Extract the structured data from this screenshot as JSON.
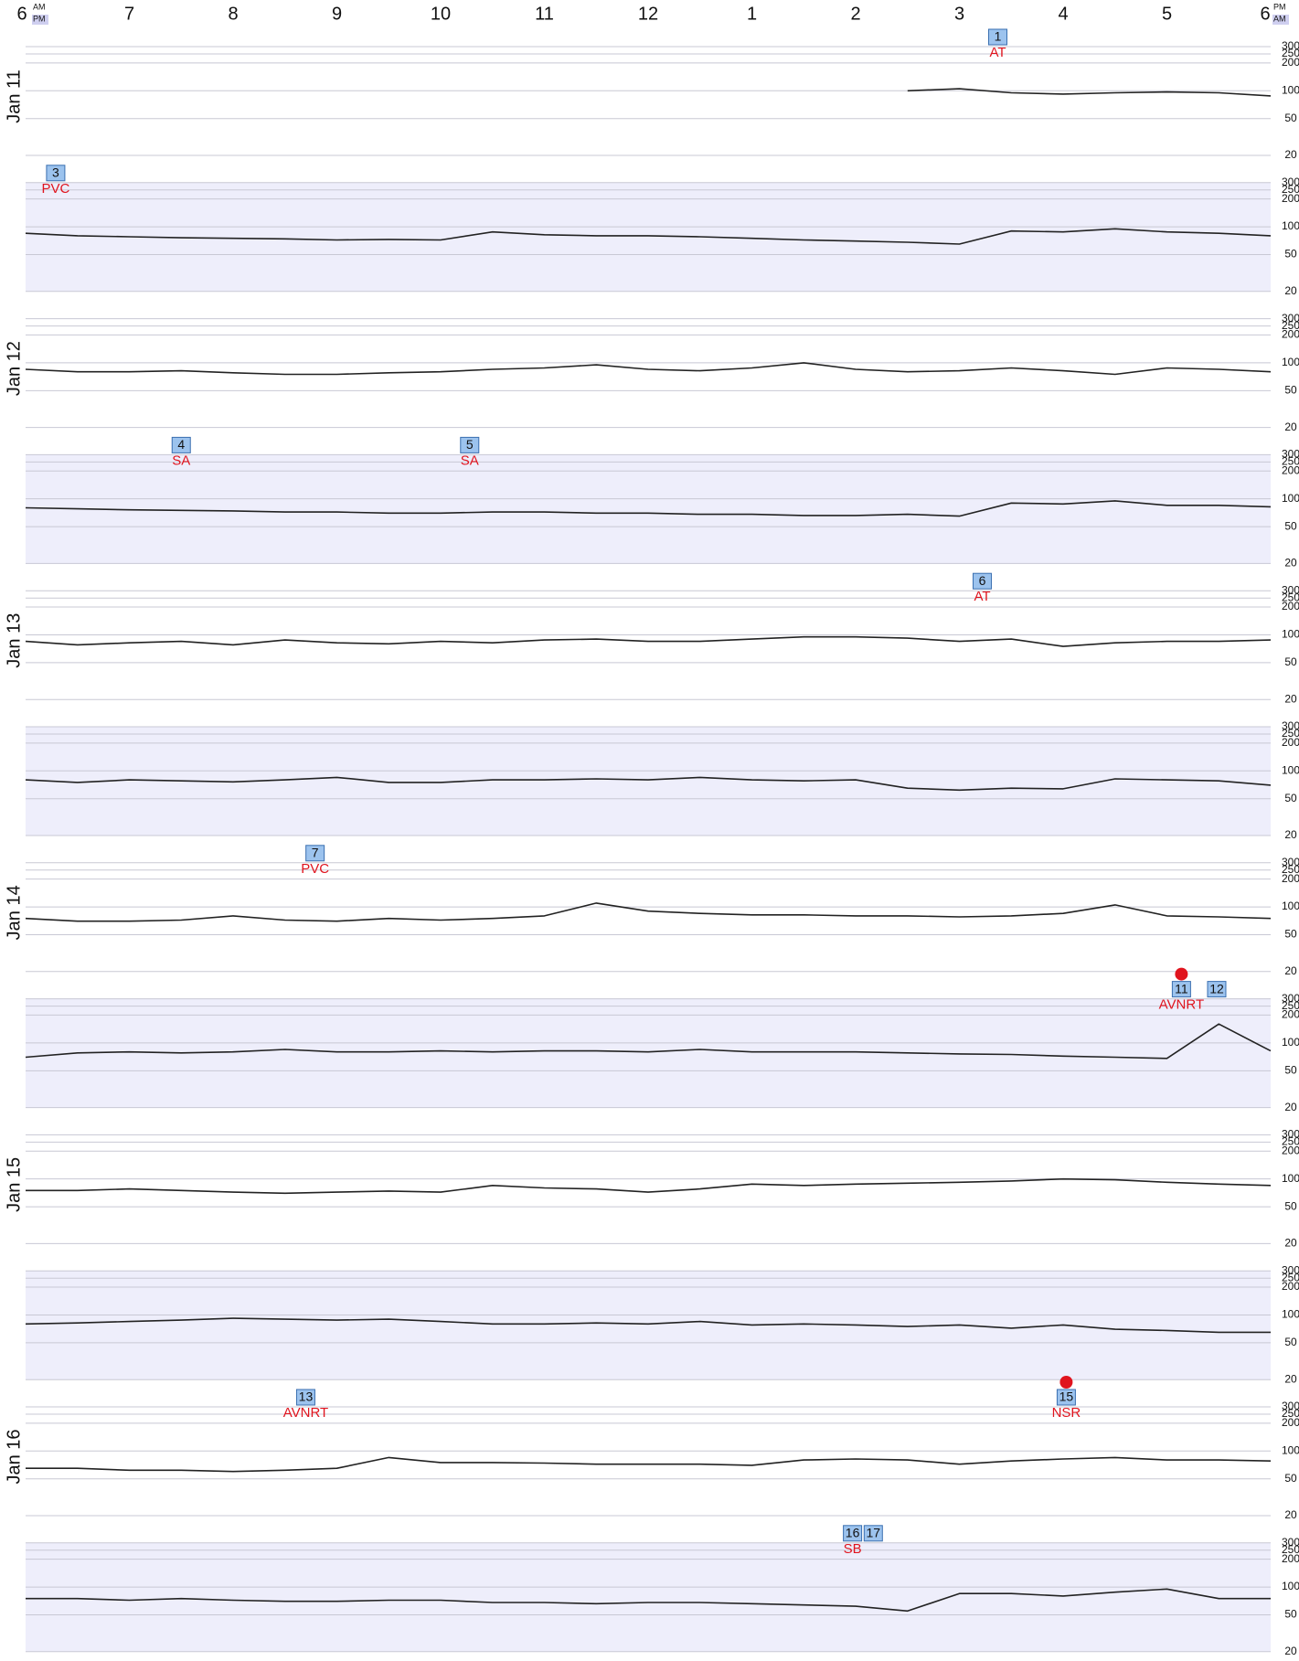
{
  "chart_data": {
    "type": "line",
    "log_scale": true,
    "color": "#222222",
    "shade_color": "#eeeefb",
    "event_color": "#9cc3ee",
    "event_text_color": "#e0141e",
    "xlim": [
      0,
      12
    ],
    "xticks": [
      {
        "value": 0,
        "label": "6"
      },
      {
        "value": 1,
        "label": "7"
      },
      {
        "value": 2,
        "label": "8"
      },
      {
        "value": 3,
        "label": "9"
      },
      {
        "value": 4,
        "label": "10"
      },
      {
        "value": 5,
        "label": "11"
      },
      {
        "value": 6,
        "label": "12"
      },
      {
        "value": 7,
        "label": "1"
      },
      {
        "value": 8,
        "label": "2"
      },
      {
        "value": 9,
        "label": "3"
      },
      {
        "value": 10,
        "label": "4"
      },
      {
        "value": 11,
        "label": "5"
      },
      {
        "value": 12,
        "label": "6"
      }
    ],
    "left_marks": [
      "AM",
      "PM"
    ],
    "right_marks": [
      "PM",
      "AM"
    ],
    "ylim": [
      20,
      300
    ],
    "yticks": [
      20,
      50,
      100,
      200,
      250,
      300
    ],
    "x": [
      0,
      0.5,
      1,
      1.5,
      2,
      2.5,
      3,
      3.5,
      4,
      4.5,
      5,
      5.5,
      6,
      6.5,
      7,
      7.5,
      8,
      8.5,
      9,
      9.5,
      10,
      10.5,
      11,
      11.5,
      12
    ],
    "rows": [
      {
        "label": "Jan 11",
        "values": [
          null,
          null,
          null,
          null,
          null,
          null,
          null,
          null,
          null,
          null,
          null,
          null,
          null,
          null,
          null,
          null,
          null,
          100,
          105,
          95,
          92,
          95,
          97,
          95,
          88
        ],
        "events": [
          {
            "number": 1,
            "label": "AT",
            "time": 9.37
          }
        ]
      },
      {
        "values": [
          85,
          80,
          78,
          76,
          75,
          74,
          72,
          73,
          72,
          88,
          82,
          80,
          80,
          78,
          75,
          72,
          70,
          68,
          65,
          90,
          88,
          95,
          88,
          85,
          80
        ],
        "events": [
          {
            "number": 3,
            "label": "PVC",
            "time": 0.29
          }
        ]
      },
      {
        "label": "Jan 12",
        "values": [
          85,
          80,
          80,
          82,
          78,
          75,
          75,
          78,
          80,
          85,
          88,
          95,
          85,
          82,
          88,
          100,
          85,
          80,
          82,
          88,
          82,
          75,
          88,
          85,
          80
        ],
        "events": []
      },
      {
        "values": [
          80,
          78,
          76,
          75,
          74,
          72,
          72,
          70,
          70,
          72,
          72,
          70,
          70,
          68,
          68,
          66,
          66,
          68,
          65,
          90,
          88,
          95,
          85,
          85,
          82
        ],
        "events": [
          {
            "number": 4,
            "label": "SA",
            "time": 1.5
          },
          {
            "number": 5,
            "label": "SA",
            "time": 4.28
          }
        ]
      },
      {
        "label": "Jan 13",
        "values": [
          85,
          78,
          82,
          85,
          78,
          88,
          82,
          80,
          85,
          82,
          88,
          90,
          85,
          85,
          90,
          95,
          95,
          92,
          85,
          90,
          75,
          82,
          85,
          85,
          88
        ],
        "events": [
          {
            "number": 6,
            "label": "AT",
            "time": 9.22
          }
        ]
      },
      {
        "values": [
          80,
          75,
          80,
          78,
          76,
          80,
          85,
          75,
          75,
          80,
          80,
          82,
          80,
          85,
          80,
          78,
          80,
          65,
          62,
          65,
          64,
          82,
          80,
          78,
          70
        ],
        "events": []
      },
      {
        "label": "Jan 14",
        "values": [
          75,
          70,
          70,
          72,
          80,
          72,
          70,
          75,
          72,
          75,
          80,
          110,
          90,
          85,
          82,
          82,
          80,
          80,
          78,
          80,
          85,
          105,
          80,
          78,
          75
        ],
        "events": [
          {
            "number": 7,
            "label": "PVC",
            "time": 2.79
          }
        ]
      },
      {
        "values": [
          70,
          78,
          80,
          78,
          80,
          85,
          80,
          80,
          82,
          80,
          82,
          82,
          80,
          85,
          80,
          80,
          80,
          78,
          76,
          75,
          72,
          70,
          68,
          160,
          82
        ],
        "events": [
          {
            "number": 11,
            "label": "AVNRT",
            "time": 11.14,
            "dot": true
          },
          {
            "number": 12,
            "time": 11.48
          }
        ]
      },
      {
        "label": "Jan 15",
        "values": [
          75,
          75,
          78,
          75,
          72,
          70,
          72,
          74,
          72,
          85,
          80,
          78,
          72,
          78,
          88,
          85,
          88,
          90,
          92,
          95,
          100,
          98,
          92,
          88,
          85
        ],
        "events": []
      },
      {
        "values": [
          80,
          82,
          85,
          88,
          92,
          90,
          88,
          90,
          85,
          80,
          80,
          82,
          80,
          85,
          78,
          80,
          78,
          75,
          78,
          72,
          78,
          70,
          68,
          65,
          65
        ],
        "events": []
      },
      {
        "label": "Jan 16",
        "values": [
          65,
          65,
          62,
          62,
          60,
          62,
          65,
          85,
          75,
          75,
          74,
          72,
          72,
          72,
          70,
          80,
          82,
          80,
          72,
          78,
          82,
          85,
          80,
          80,
          78
        ],
        "events": [
          {
            "number": 13,
            "label": "AVNRT",
            "time": 2.7
          },
          {
            "number": 15,
            "label": "NSR",
            "time": 10.03,
            "dot": true
          }
        ]
      },
      {
        "values": [
          75,
          75,
          72,
          75,
          72,
          70,
          70,
          72,
          72,
          68,
          68,
          66,
          68,
          68,
          66,
          64,
          62,
          55,
          85,
          85,
          80,
          88,
          95,
          75,
          75
        ],
        "events": [
          {
            "number": 16,
            "label": "SB",
            "time": 7.97
          },
          {
            "number": 17,
            "time": 8.17
          }
        ]
      }
    ]
  }
}
